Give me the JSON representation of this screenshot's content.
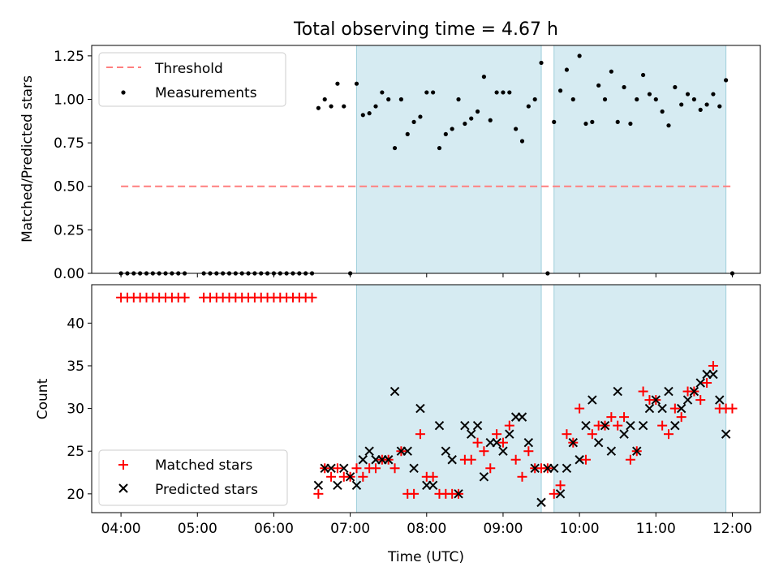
{
  "chart_data": [
    {
      "type": "scatter",
      "title": "Total observing time = 4.67 h",
      "xlabel": "",
      "ylabel": "Matched/Predicted stars",
      "xlim": [
        "03:37",
        "12:22"
      ],
      "ylim": [
        0,
        1.31
      ],
      "yticks": [
        0.0,
        0.25,
        0.5,
        0.75,
        1.0,
        1.25
      ],
      "ytick_labels": [
        "0.00",
        "0.25",
        "0.50",
        "0.75",
        "1.00",
        "1.25"
      ],
      "shaded_intervals": [
        [
          "07:05",
          "09:30"
        ],
        [
          "09:40",
          "11:55"
        ]
      ],
      "legend_position": "upper-left",
      "legend": [
        "Threshold",
        "Measurements"
      ],
      "threshold": {
        "name": "Threshold",
        "y": 0.5,
        "x_range": [
          "04:00",
          "12:00"
        ],
        "color": "#ff7f7f",
        "style": "dashed"
      },
      "series": [
        {
          "name": "Measurements",
          "color": "#000000",
          "x": [
            "04:00",
            "04:05",
            "04:10",
            "04:15",
            "04:20",
            "04:25",
            "04:30",
            "04:35",
            "04:40",
            "04:45",
            "04:50",
            "05:05",
            "05:10",
            "05:15",
            "05:20",
            "05:25",
            "05:30",
            "05:35",
            "05:40",
            "05:45",
            "05:50",
            "05:55",
            "06:00",
            "06:05",
            "06:10",
            "06:15",
            "06:20",
            "06:25",
            "06:30",
            "06:35",
            "06:40",
            "06:45",
            "06:50",
            "06:55",
            "07:00",
            "07:05",
            "07:10",
            "07:15",
            "07:20",
            "07:25",
            "07:30",
            "07:35",
            "07:40",
            "07:45",
            "07:50",
            "07:55",
            "08:00",
            "08:05",
            "08:10",
            "08:15",
            "08:20",
            "08:25",
            "08:30",
            "08:35",
            "08:40",
            "08:45",
            "08:50",
            "08:55",
            "09:00",
            "09:05",
            "09:10",
            "09:15",
            "09:20",
            "09:25",
            "09:30",
            "09:35",
            "09:40",
            "09:45",
            "09:50",
            "09:55",
            "10:00",
            "10:05",
            "10:10",
            "10:15",
            "10:20",
            "10:25",
            "10:30",
            "10:35",
            "10:40",
            "10:45",
            "10:50",
            "10:55",
            "11:00",
            "11:05",
            "11:10",
            "11:15",
            "11:20",
            "11:25",
            "11:30",
            "11:35",
            "11:40",
            "11:45",
            "11:50",
            "11:55",
            "12:00"
          ],
          "y": [
            0,
            0,
            0,
            0,
            0,
            0,
            0,
            0,
            0,
            0,
            0,
            0,
            0,
            0,
            0,
            0,
            0,
            0,
            0,
            0,
            0,
            0,
            0,
            0,
            0,
            0,
            0,
            0,
            0,
            0.95,
            1.0,
            0.96,
            1.09,
            0.96,
            0,
            1.09,
            0.91,
            0.92,
            0.96,
            1.04,
            1.0,
            0.72,
            1.0,
            0.8,
            0.87,
            0.9,
            1.04,
            1.04,
            0.72,
            0.8,
            0.83,
            1.0,
            0.86,
            0.89,
            0.93,
            1.13,
            0.88,
            1.04,
            1.04,
            1.04,
            0.83,
            0.76,
            0.96,
            1.0,
            1.21,
            0,
            0.87,
            1.05,
            1.17,
            1.0,
            1.25,
            0.86,
            0.87,
            1.08,
            1.0,
            1.16,
            0.87,
            1.07,
            0.86,
            1.0,
            1.14,
            1.03,
            1.0,
            0.93,
            0.85,
            1.07,
            0.97,
            1.03,
            1.0,
            0.94,
            0.97,
            1.03,
            0.96,
            1.11,
            0
          ]
        }
      ]
    },
    {
      "type": "scatter",
      "title": "",
      "xlabel": "Time (UTC)",
      "ylabel": "Count",
      "xlim": [
        "03:37",
        "12:22"
      ],
      "ylim": [
        17.8,
        44.5
      ],
      "xticks": [
        "04:00",
        "05:00",
        "06:00",
        "07:00",
        "08:00",
        "09:00",
        "10:00",
        "11:00",
        "12:00"
      ],
      "yticks": [
        20,
        25,
        30,
        35,
        40
      ],
      "ytick_labels": [
        "20",
        "25",
        "30",
        "35",
        "40"
      ],
      "shaded_intervals": [
        [
          "07:05",
          "09:30"
        ],
        [
          "09:40",
          "11:55"
        ]
      ],
      "legend_position": "lower-left",
      "legend": [
        "Matched stars",
        "Predicted stars"
      ],
      "series": [
        {
          "name": "Matched stars",
          "marker": "+",
          "color": "#ff0000",
          "x": [
            "04:00",
            "04:05",
            "04:10",
            "04:15",
            "04:20",
            "04:25",
            "04:30",
            "04:35",
            "04:40",
            "04:45",
            "04:50",
            "05:05",
            "05:10",
            "05:15",
            "05:20",
            "05:25",
            "05:30",
            "05:35",
            "05:40",
            "05:45",
            "05:50",
            "05:55",
            "06:00",
            "06:05",
            "06:10",
            "06:15",
            "06:20",
            "06:25",
            "06:30",
            "06:35",
            "06:40",
            "06:45",
            "06:50",
            "06:55",
            "07:00",
            "07:05",
            "07:10",
            "07:15",
            "07:20",
            "07:25",
            "07:30",
            "07:35",
            "07:40",
            "07:45",
            "07:50",
            "07:55",
            "08:00",
            "08:05",
            "08:10",
            "08:15",
            "08:20",
            "08:25",
            "08:30",
            "08:35",
            "08:40",
            "08:45",
            "08:50",
            "08:55",
            "09:00",
            "09:05",
            "09:10",
            "09:15",
            "09:20",
            "09:25",
            "09:30",
            "09:35",
            "09:40",
            "09:45",
            "09:50",
            "09:55",
            "10:00",
            "10:05",
            "10:10",
            "10:15",
            "10:20",
            "10:25",
            "10:30",
            "10:35",
            "10:40",
            "10:45",
            "10:50",
            "10:55",
            "11:00",
            "11:05",
            "11:10",
            "11:15",
            "11:20",
            "11:25",
            "11:30",
            "11:35",
            "11:40",
            "11:45",
            "11:50",
            "11:55",
            "12:00"
          ],
          "y": [
            43,
            43,
            43,
            43,
            43,
            43,
            43,
            43,
            43,
            43,
            43,
            43,
            43,
            43,
            43,
            43,
            43,
            43,
            43,
            43,
            43,
            43,
            43,
            43,
            43,
            43,
            43,
            43,
            43,
            20,
            23,
            22,
            23,
            22,
            22,
            23,
            22,
            23,
            23,
            24,
            24,
            23,
            25,
            20,
            20,
            27,
            22,
            22,
            20,
            20,
            20,
            20,
            24,
            24,
            26,
            25,
            23,
            27,
            26,
            28,
            24,
            22,
            25,
            23,
            23,
            23,
            20,
            21,
            27,
            26,
            30,
            24,
            27,
            28,
            28,
            29,
            28,
            29,
            24,
            25,
            32,
            31,
            31,
            28,
            27,
            30,
            29,
            32,
            32,
            31,
            33,
            35,
            30,
            30,
            30
          ]
        },
        {
          "name": "Predicted stars",
          "marker": "x",
          "color": "#000000",
          "x": [
            "06:35",
            "06:40",
            "06:45",
            "06:50",
            "06:55",
            "07:00",
            "07:05",
            "07:10",
            "07:15",
            "07:20",
            "07:25",
            "07:30",
            "07:35",
            "07:40",
            "07:45",
            "07:50",
            "07:55",
            "08:00",
            "08:05",
            "08:10",
            "08:15",
            "08:20",
            "08:25",
            "08:30",
            "08:35",
            "08:40",
            "08:45",
            "08:50",
            "08:55",
            "09:00",
            "09:05",
            "09:10",
            "09:15",
            "09:20",
            "09:25",
            "09:30",
            "09:35",
            "09:40",
            "09:45",
            "09:50",
            "09:55",
            "10:00",
            "10:05",
            "10:10",
            "10:15",
            "10:20",
            "10:25",
            "10:30",
            "10:35",
            "10:40",
            "10:45",
            "10:50",
            "10:55",
            "11:00",
            "11:05",
            "11:10",
            "11:15",
            "11:20",
            "11:25",
            "11:30",
            "11:35",
            "11:40",
            "11:45",
            "11:50",
            "11:55"
          ],
          "y": [
            21,
            23,
            23,
            21,
            23,
            22,
            21,
            24,
            25,
            24,
            24,
            24,
            32,
            25,
            25,
            23,
            30,
            21,
            21,
            28,
            25,
            24,
            20,
            28,
            27,
            28,
            22,
            26,
            26,
            25,
            27,
            29,
            29,
            26,
            23,
            19,
            23,
            23,
            20,
            23,
            26,
            24,
            28,
            31,
            26,
            28,
            25,
            32,
            27,
            28,
            25,
            28,
            30,
            31,
            30,
            32,
            28,
            30,
            31,
            32,
            33,
            34,
            34,
            31,
            27
          ]
        }
      ]
    }
  ]
}
